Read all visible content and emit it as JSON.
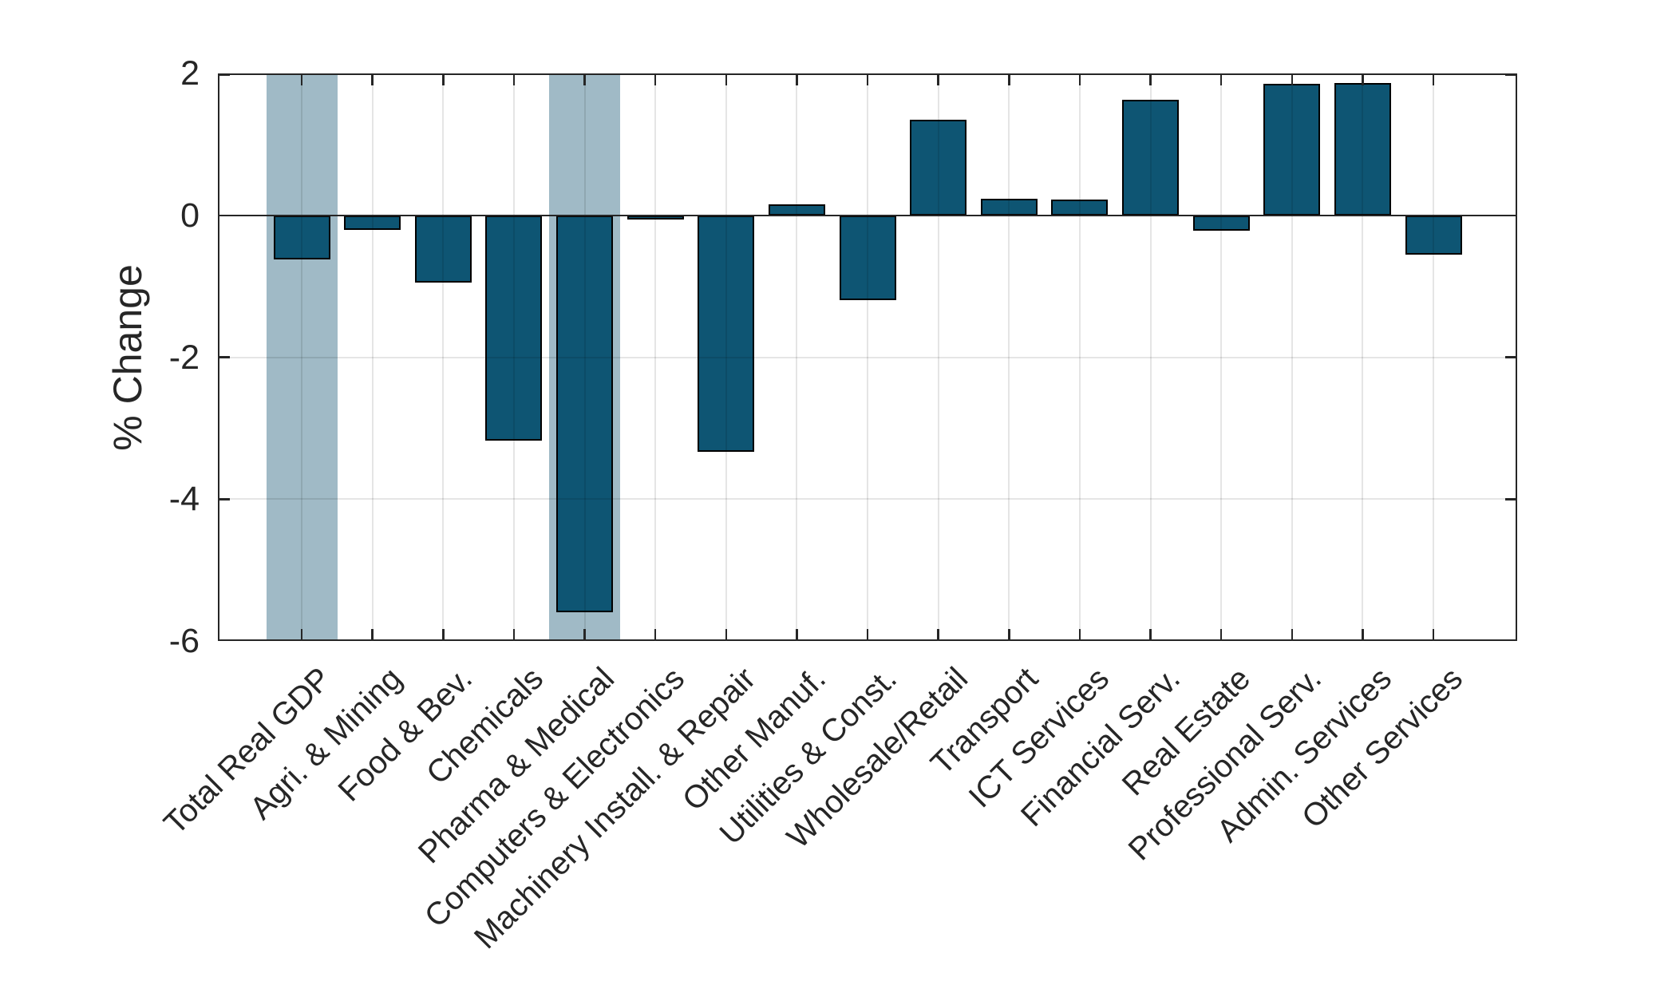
{
  "figure": {
    "background": "#ffffff"
  },
  "chart_data": {
    "type": "bar",
    "title": "",
    "xlabel": "",
    "ylabel": "% Change",
    "ylim": [
      -6,
      2
    ],
    "yticks": [
      2,
      0,
      -2,
      -4,
      -6
    ],
    "grid": "on",
    "legend": "none",
    "categories": [
      "Total Real GDP",
      "Agri. & Mining",
      "Food & Bev.",
      "Chemicals",
      "Pharma & Medical",
      "Computers & Electronics",
      "Machinery Install. & Repair",
      "Other Manuf.",
      "Utilities & Const.",
      "Wholesale/Retail",
      "Transport",
      "ICT Services",
      "Financial Serv.",
      "Real Estate",
      "Professional Serv.",
      "Admin. Services",
      "Other Services"
    ],
    "values": [
      -0.62,
      -0.2,
      -0.95,
      -3.18,
      -5.6,
      -0.04,
      -3.33,
      0.15,
      -1.2,
      1.35,
      0.23,
      0.22,
      1.63,
      -0.22,
      1.85,
      1.87,
      -0.55
    ],
    "highlighted_categories": [
      "Total Real GDP",
      "Pharma & Medical"
    ],
    "colors": {
      "bar_fill": "#0e5573",
      "bar_edge": "#000000",
      "highlight_band": "#a0bac6",
      "axis": "#262626",
      "grid": "#e0e0e0",
      "zero_line": "#262626",
      "background": "#ffffff"
    }
  }
}
